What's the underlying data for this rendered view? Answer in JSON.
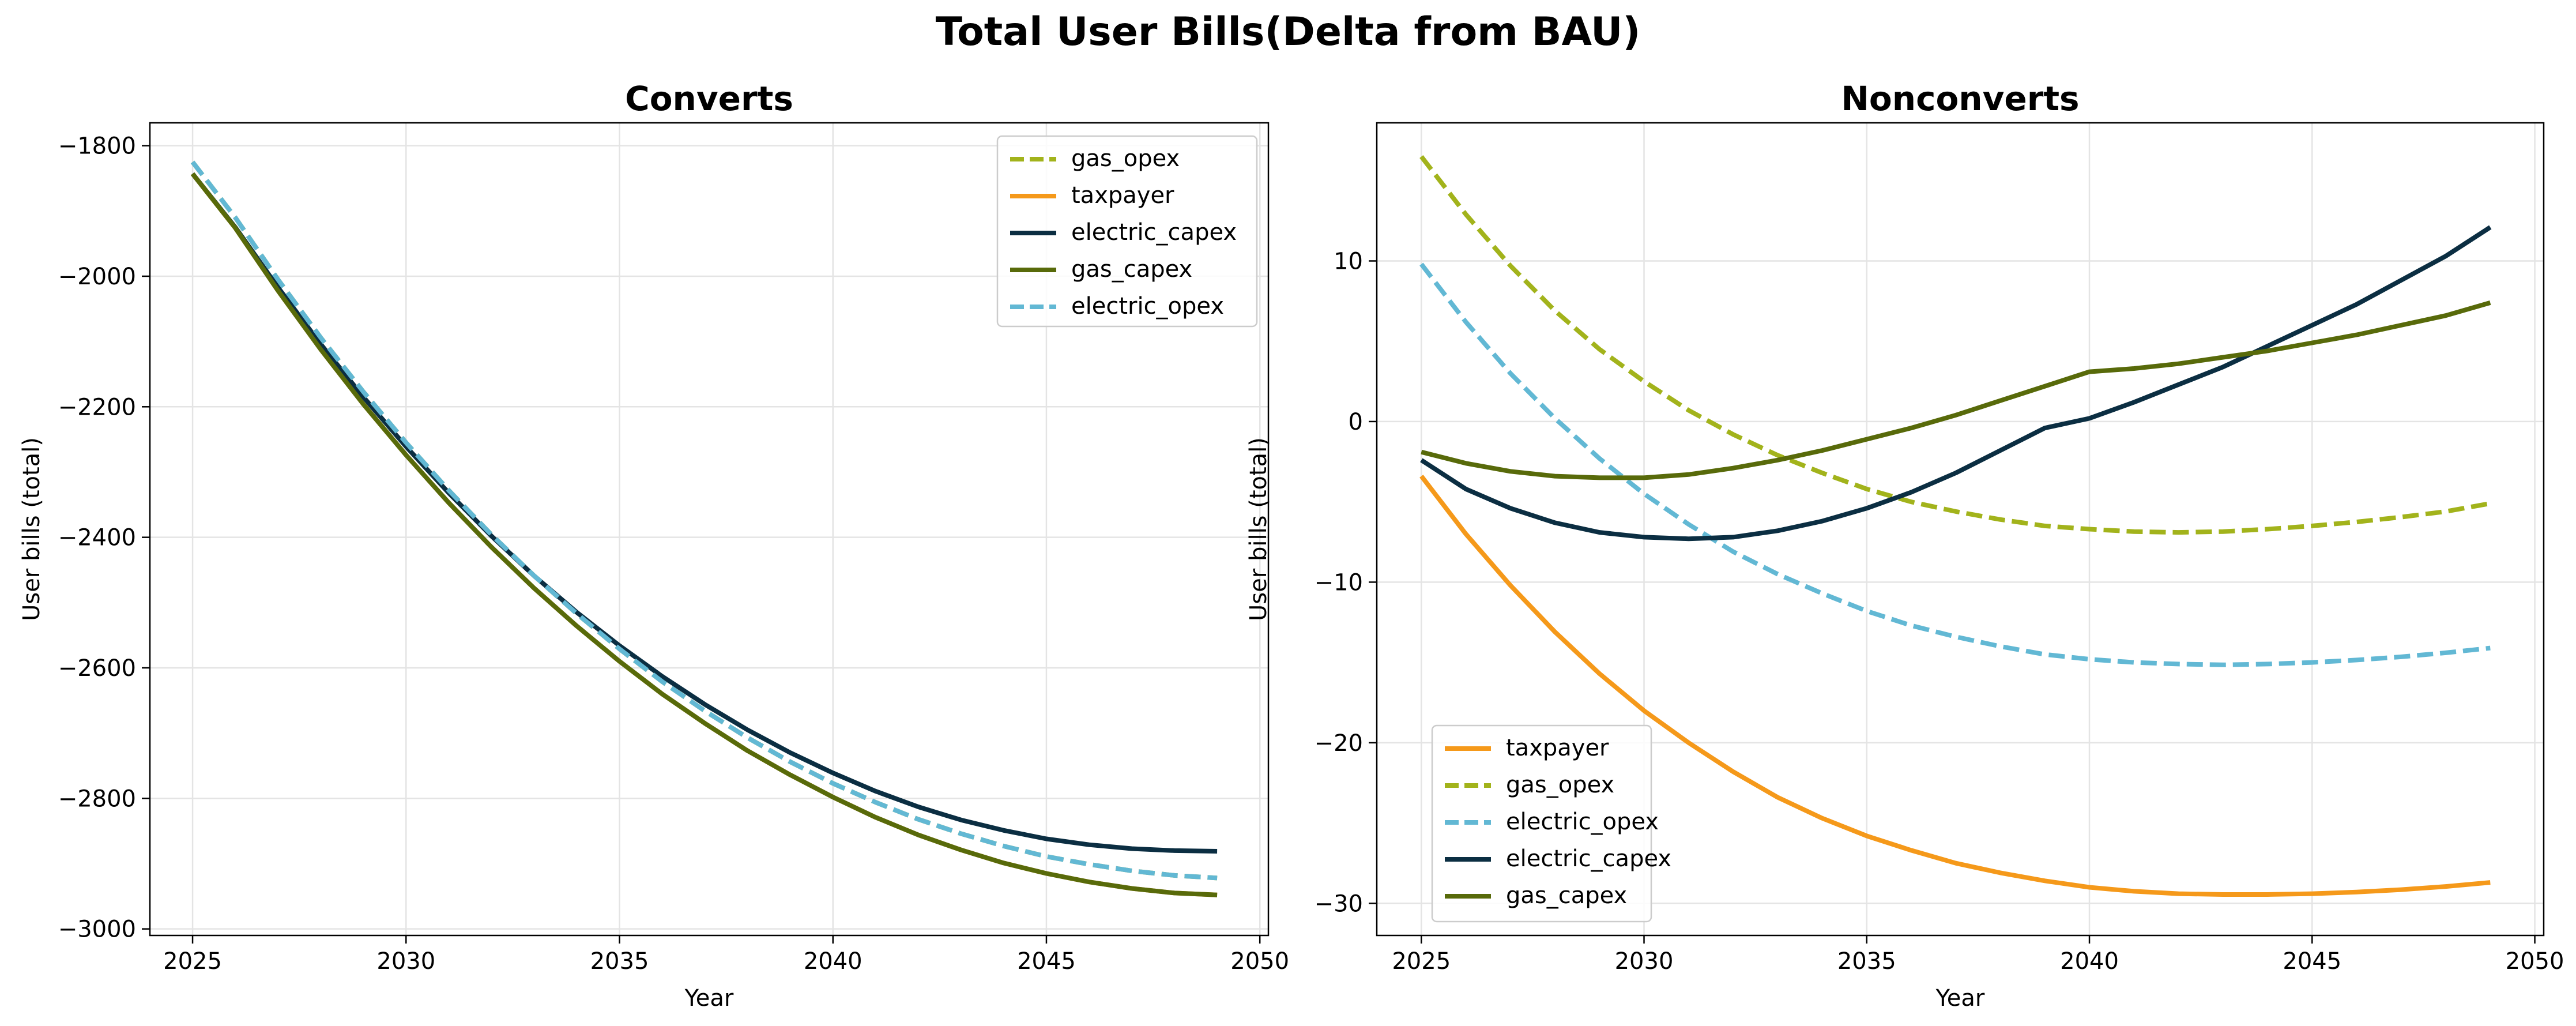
{
  "title": "Total User Bills(Delta from BAU)",
  "colors": {
    "gas_opex": "#a2b31b",
    "taxpayer": "#f5991a",
    "electric_capex": "#0b2e42",
    "gas_capex": "#586a0a",
    "electric_opex": "#62b8d4"
  },
  "chart_data": [
    {
      "type": "line",
      "title": "Converts",
      "xlabel": "Year",
      "ylabel": "User bills (total)",
      "xlim": [
        2024,
        2050.2
      ],
      "ylim": [
        -3010,
        -1765
      ],
      "xticks": [
        2025,
        2030,
        2035,
        2040,
        2045,
        2050
      ],
      "yticks": [
        -3000,
        -2800,
        -2600,
        -2400,
        -2200,
        -2000,
        -1800
      ],
      "grid": true,
      "legend_placement": "upper right",
      "legend_order": [
        "gas_opex",
        "taxpayer",
        "electric_capex",
        "gas_capex",
        "electric_opex"
      ],
      "x": [
        2025,
        2026,
        2027,
        2028,
        2029,
        2030,
        2031,
        2032,
        2033,
        2034,
        2035,
        2036,
        2037,
        2038,
        2039,
        2040,
        2041,
        2042,
        2043,
        2044,
        2045,
        2046,
        2047,
        2048,
        2049
      ],
      "series": [
        {
          "name": "gas_opex",
          "style": "dashed",
          "color_key": "gas_opex",
          "values": [
            -1825,
            -1910,
            -2005,
            -2094,
            -2177,
            -2255,
            -2328,
            -2396,
            -2459,
            -2517,
            -2571,
            -2621,
            -2666,
            -2707,
            -2744,
            -2777,
            -2806,
            -2832,
            -2854,
            -2873,
            -2889,
            -2901,
            -2911,
            -2918,
            -2922
          ]
        },
        {
          "name": "taxpayer",
          "style": "solid",
          "color_key": "taxpayer",
          "values": [
            -1843,
            -1926,
            -2022,
            -2112,
            -2196,
            -2274,
            -2347,
            -2415,
            -2478,
            -2536,
            -2590,
            -2640,
            -2685,
            -2727,
            -2764,
            -2798,
            -2829,
            -2856,
            -2879,
            -2899,
            -2915,
            -2928,
            -2938,
            -2945,
            -2948
          ]
        },
        {
          "name": "electric_capex",
          "style": "solid",
          "color_key": "electric_capex",
          "values": [
            -1843,
            -1925,
            -2017,
            -2104,
            -2185,
            -2261,
            -2332,
            -2398,
            -2459,
            -2515,
            -2566,
            -2613,
            -2656,
            -2695,
            -2730,
            -2761,
            -2789,
            -2813,
            -2833,
            -2849,
            -2862,
            -2871,
            -2877,
            -2880,
            -2881
          ]
        },
        {
          "name": "gas_capex",
          "style": "solid",
          "color_key": "gas_capex",
          "values": [
            -1843,
            -1926,
            -2022,
            -2112,
            -2196,
            -2274,
            -2347,
            -2415,
            -2478,
            -2536,
            -2590,
            -2640,
            -2685,
            -2727,
            -2764,
            -2798,
            -2829,
            -2856,
            -2879,
            -2899,
            -2915,
            -2928,
            -2938,
            -2945,
            -2948
          ]
        },
        {
          "name": "electric_opex",
          "style": "dashed",
          "color_key": "electric_opex",
          "values": [
            -1825,
            -1910,
            -2005,
            -2094,
            -2177,
            -2255,
            -2328,
            -2396,
            -2459,
            -2517,
            -2571,
            -2621,
            -2666,
            -2707,
            -2744,
            -2777,
            -2806,
            -2832,
            -2854,
            -2873,
            -2889,
            -2901,
            -2911,
            -2918,
            -2922
          ]
        }
      ]
    },
    {
      "type": "line",
      "title": "Nonconverts",
      "xlabel": "Year",
      "ylabel": "User bills (total)",
      "xlim": [
        2024,
        2050.2
      ],
      "ylim": [
        -32,
        18.6
      ],
      "xticks": [
        2025,
        2030,
        2035,
        2040,
        2045,
        2050
      ],
      "yticks": [
        -30,
        -20,
        -10,
        0,
        10
      ],
      "grid": true,
      "legend_placement": "lower left",
      "legend_order": [
        "taxpayer",
        "gas_opex",
        "electric_opex",
        "electric_capex",
        "gas_capex"
      ],
      "x": [
        2025,
        2026,
        2027,
        2028,
        2029,
        2030,
        2031,
        2032,
        2033,
        2034,
        2035,
        2036,
        2037,
        2038,
        2039,
        2040,
        2041,
        2042,
        2043,
        2044,
        2045,
        2046,
        2047,
        2048,
        2049
      ],
      "series": [
        {
          "name": "taxpayer",
          "style": "solid",
          "color_key": "taxpayer",
          "values": [
            -3.4,
            -7.0,
            -10.2,
            -13.1,
            -15.7,
            -18.0,
            -20.0,
            -21.8,
            -23.4,
            -24.7,
            -25.8,
            -26.7,
            -27.5,
            -28.1,
            -28.6,
            -29.0,
            -29.25,
            -29.4,
            -29.45,
            -29.45,
            -29.4,
            -29.3,
            -29.15,
            -28.95,
            -28.7
          ]
        },
        {
          "name": "gas_opex",
          "style": "dashed",
          "color_key": "gas_opex",
          "values": [
            16.5,
            12.9,
            9.7,
            6.9,
            4.5,
            2.5,
            0.7,
            -0.8,
            -2.1,
            -3.2,
            -4.2,
            -5.0,
            -5.6,
            -6.1,
            -6.5,
            -6.7,
            -6.85,
            -6.9,
            -6.85,
            -6.7,
            -6.5,
            -6.25,
            -5.95,
            -5.6,
            -5.1
          ]
        },
        {
          "name": "electric_opex",
          "style": "dashed",
          "color_key": "electric_opex",
          "values": [
            9.8,
            6.2,
            3.0,
            0.2,
            -2.3,
            -4.5,
            -6.4,
            -8.1,
            -9.5,
            -10.7,
            -11.8,
            -12.7,
            -13.4,
            -14.0,
            -14.5,
            -14.8,
            -15.0,
            -15.1,
            -15.15,
            -15.1,
            -15.0,
            -14.85,
            -14.65,
            -14.4,
            -14.1
          ]
        },
        {
          "name": "electric_capex",
          "style": "solid",
          "color_key": "electric_capex",
          "values": [
            -2.4,
            -4.2,
            -5.4,
            -6.3,
            -6.9,
            -7.2,
            -7.3,
            -7.2,
            -6.8,
            -6.2,
            -5.4,
            -4.4,
            -3.2,
            -1.8,
            -0.4,
            0.2,
            1.2,
            2.3,
            3.4,
            4.7,
            6.0,
            7.3,
            8.8,
            10.3,
            12.1
          ]
        },
        {
          "name": "gas_capex",
          "style": "solid",
          "color_key": "gas_capex",
          "values": [
            -1.9,
            -2.6,
            -3.1,
            -3.4,
            -3.5,
            -3.5,
            -3.3,
            -2.9,
            -2.4,
            -1.8,
            -1.1,
            -0.4,
            0.4,
            1.3,
            2.2,
            3.1,
            3.3,
            3.6,
            4.0,
            4.4,
            4.9,
            5.4,
            6.0,
            6.6,
            7.4
          ]
        }
      ]
    }
  ]
}
